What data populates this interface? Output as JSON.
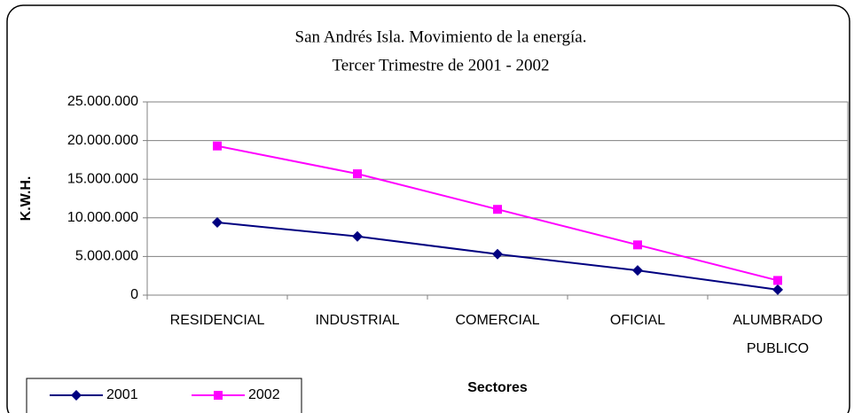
{
  "chart_data": {
    "type": "line",
    "title": "San Andrés Isla. Movimiento de la energía.",
    "subtitle": "Tercer Trimestre de 2001 - 2002",
    "y_label": "K.W.H.",
    "x_label": "Sectores",
    "categories": [
      "RESIDENCIAL",
      "INDUSTRIAL",
      "COMERCIAL",
      "OFICIAL",
      "ALUMBRADO PUBLICO"
    ],
    "series": [
      {
        "name": "2001",
        "color": "#000080",
        "marker": "diamond",
        "values": [
          9400000,
          7600000,
          5300000,
          3200000,
          700000
        ]
      },
      {
        "name": "2002",
        "color": "#ff00ff",
        "marker": "square",
        "values": [
          19300000,
          15700000,
          11100000,
          6500000,
          1900000
        ]
      }
    ],
    "ylim": [
      0,
      25000000
    ],
    "yticks": [
      0,
      {
        "value": 5000000,
        "label": "5.000.000"
      },
      {
        "value": 10000000,
        "label": "10.000.000"
      },
      {
        "value": 15000000,
        "label": "15.000.000"
      },
      {
        "value": 20000000,
        "label": "20.000.000"
      },
      {
        "value": 25000000,
        "label": "25.000.000"
      }
    ],
    "grid": true,
    "legend": "bottom-left"
  }
}
